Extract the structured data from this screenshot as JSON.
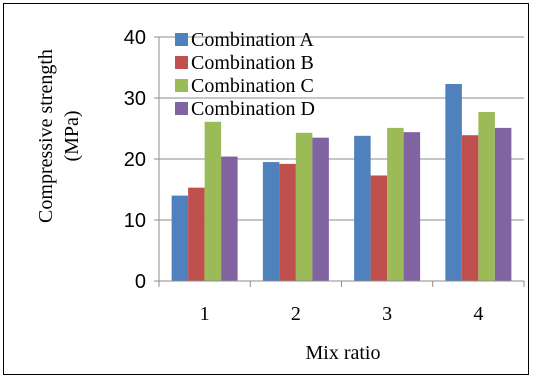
{
  "chart_data": {
    "type": "bar",
    "title": "",
    "xlabel": "Mix ratio",
    "ylabel": [
      "Compressive strength",
      "(MPa)"
    ],
    "categories": [
      "1",
      "2",
      "3",
      "4"
    ],
    "ylim": [
      0,
      40
    ],
    "yticks": [
      "0",
      "10",
      "20",
      "30",
      "40"
    ],
    "grid": "horizontal",
    "legend_position": "top-left",
    "series": [
      {
        "name": "Combination A",
        "color": "#4F81BD",
        "values": [
          14.0,
          19.5,
          23.8,
          32.3
        ]
      },
      {
        "name": "Combination B",
        "color": "#C0504D",
        "values": [
          15.3,
          19.2,
          17.3,
          23.9
        ]
      },
      {
        "name": "Combination C",
        "color": "#9BBB59",
        "values": [
          26.1,
          24.3,
          25.1,
          27.7
        ]
      },
      {
        "name": "Combination D",
        "color": "#8064A2",
        "values": [
          20.4,
          23.5,
          24.4,
          25.1
        ]
      }
    ]
  }
}
